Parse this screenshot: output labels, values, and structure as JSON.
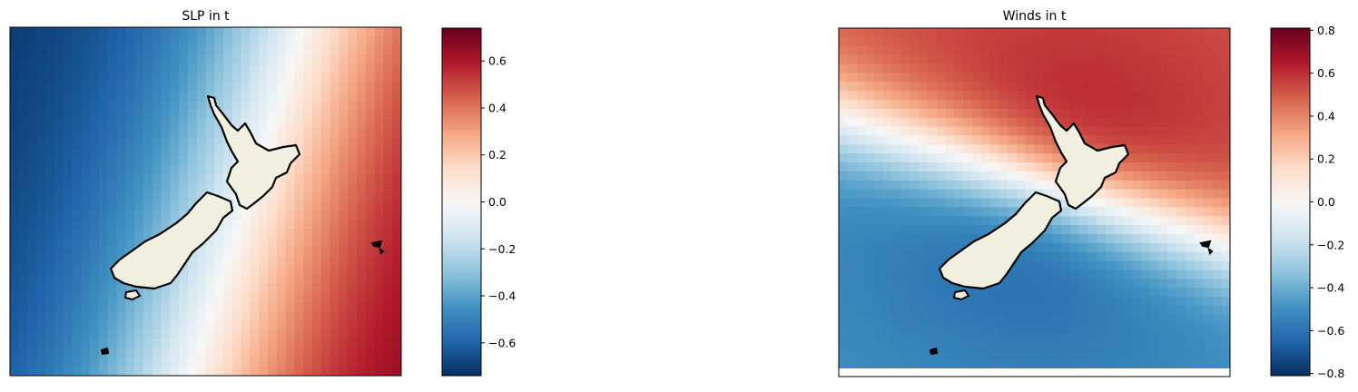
{
  "chart_data": [
    {
      "type": "heatmap",
      "title": "SLP in t",
      "colormap": "RdBu_r",
      "land_color": "#f1efdf",
      "coastline_color": "#000000",
      "value_range": [
        -0.74,
        0.74
      ],
      "colorbar": {
        "ticks": [
          0.6,
          0.4,
          0.2,
          0.0,
          -0.2,
          -0.4,
          -0.6
        ],
        "tick_labels": [
          "0.6",
          "0.4",
          "0.2",
          "0.0",
          "−0.2",
          "−0.4",
          "−0.6"
        ]
      },
      "pattern": {
        "kind": "dipole",
        "negative_center": "west",
        "positive_center": "southeast",
        "zero_line": "diagonal through central New Zealand"
      }
    },
    {
      "type": "heatmap",
      "title": "Winds in t",
      "colormap": "RdBu_r",
      "land_color": "#f1efdf",
      "coastline_color": "#000000",
      "value_range": [
        -0.81,
        0.81
      ],
      "colorbar": {
        "ticks": [
          0.8,
          0.6,
          0.4,
          0.2,
          0.0,
          -0.2,
          -0.4,
          -0.6,
          -0.8
        ],
        "tick_labels": [
          "0.8",
          "0.6",
          "0.4",
          "0.2",
          "0.0",
          "−0.2",
          "−0.4",
          "−0.6",
          "−0.8"
        ]
      },
      "pattern": {
        "kind": "dipole",
        "negative_center": "south, near South Island",
        "positive_center": "north, near North Island",
        "zero_line": "from west through Cook Strait to east"
      }
    }
  ]
}
